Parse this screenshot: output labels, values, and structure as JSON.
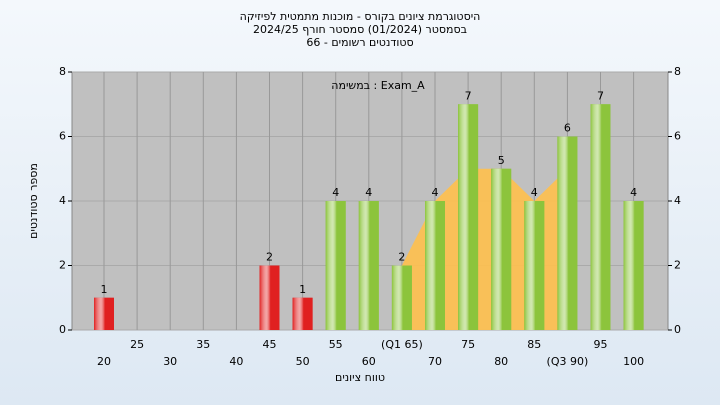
{
  "chart_data": {
    "type": "bar",
    "title": [
      "היסטוגרמת ציונים בקורס - מוכנות מתמטית לפיזיקה",
      "בסמסטר  (01/2024)  סמסטר חורף 2024/25",
      "סטודנטים רשומים - 66"
    ],
    "annotation": "במשימה : Exam_A",
    "x_label": "טווח ציונים",
    "y_label": "מספר סטודנטים",
    "categories": [
      "20",
      "25",
      "30",
      "35",
      "40",
      "45",
      "50",
      "55",
      "60",
      "(Q1 65)",
      "70",
      "75",
      "80",
      "85",
      "(Q3 90)",
      "95",
      "100"
    ],
    "values": [
      1,
      0,
      0,
      0,
      0,
      2,
      1,
      4,
      4,
      2,
      4,
      7,
      5,
      4,
      6,
      7,
      4
    ],
    "colors": [
      "#e02020",
      "#e02020",
      "#e02020",
      "#e02020",
      "#e02020",
      "#e02020",
      "#e02020",
      "#8cc43c",
      "#8cc43c",
      "#8cc43c",
      "#8cc43c",
      "#8cc43c",
      "#8cc43c",
      "#8cc43c",
      "#8cc43c",
      "#8cc43c",
      "#8cc43c"
    ],
    "ylim": [
      0,
      8
    ],
    "yticks": [
      0,
      2,
      4,
      6,
      8
    ],
    "y2lim": [
      0,
      8
    ],
    "y2ticks": [
      0,
      2,
      4,
      6,
      8
    ],
    "grid": true
  }
}
